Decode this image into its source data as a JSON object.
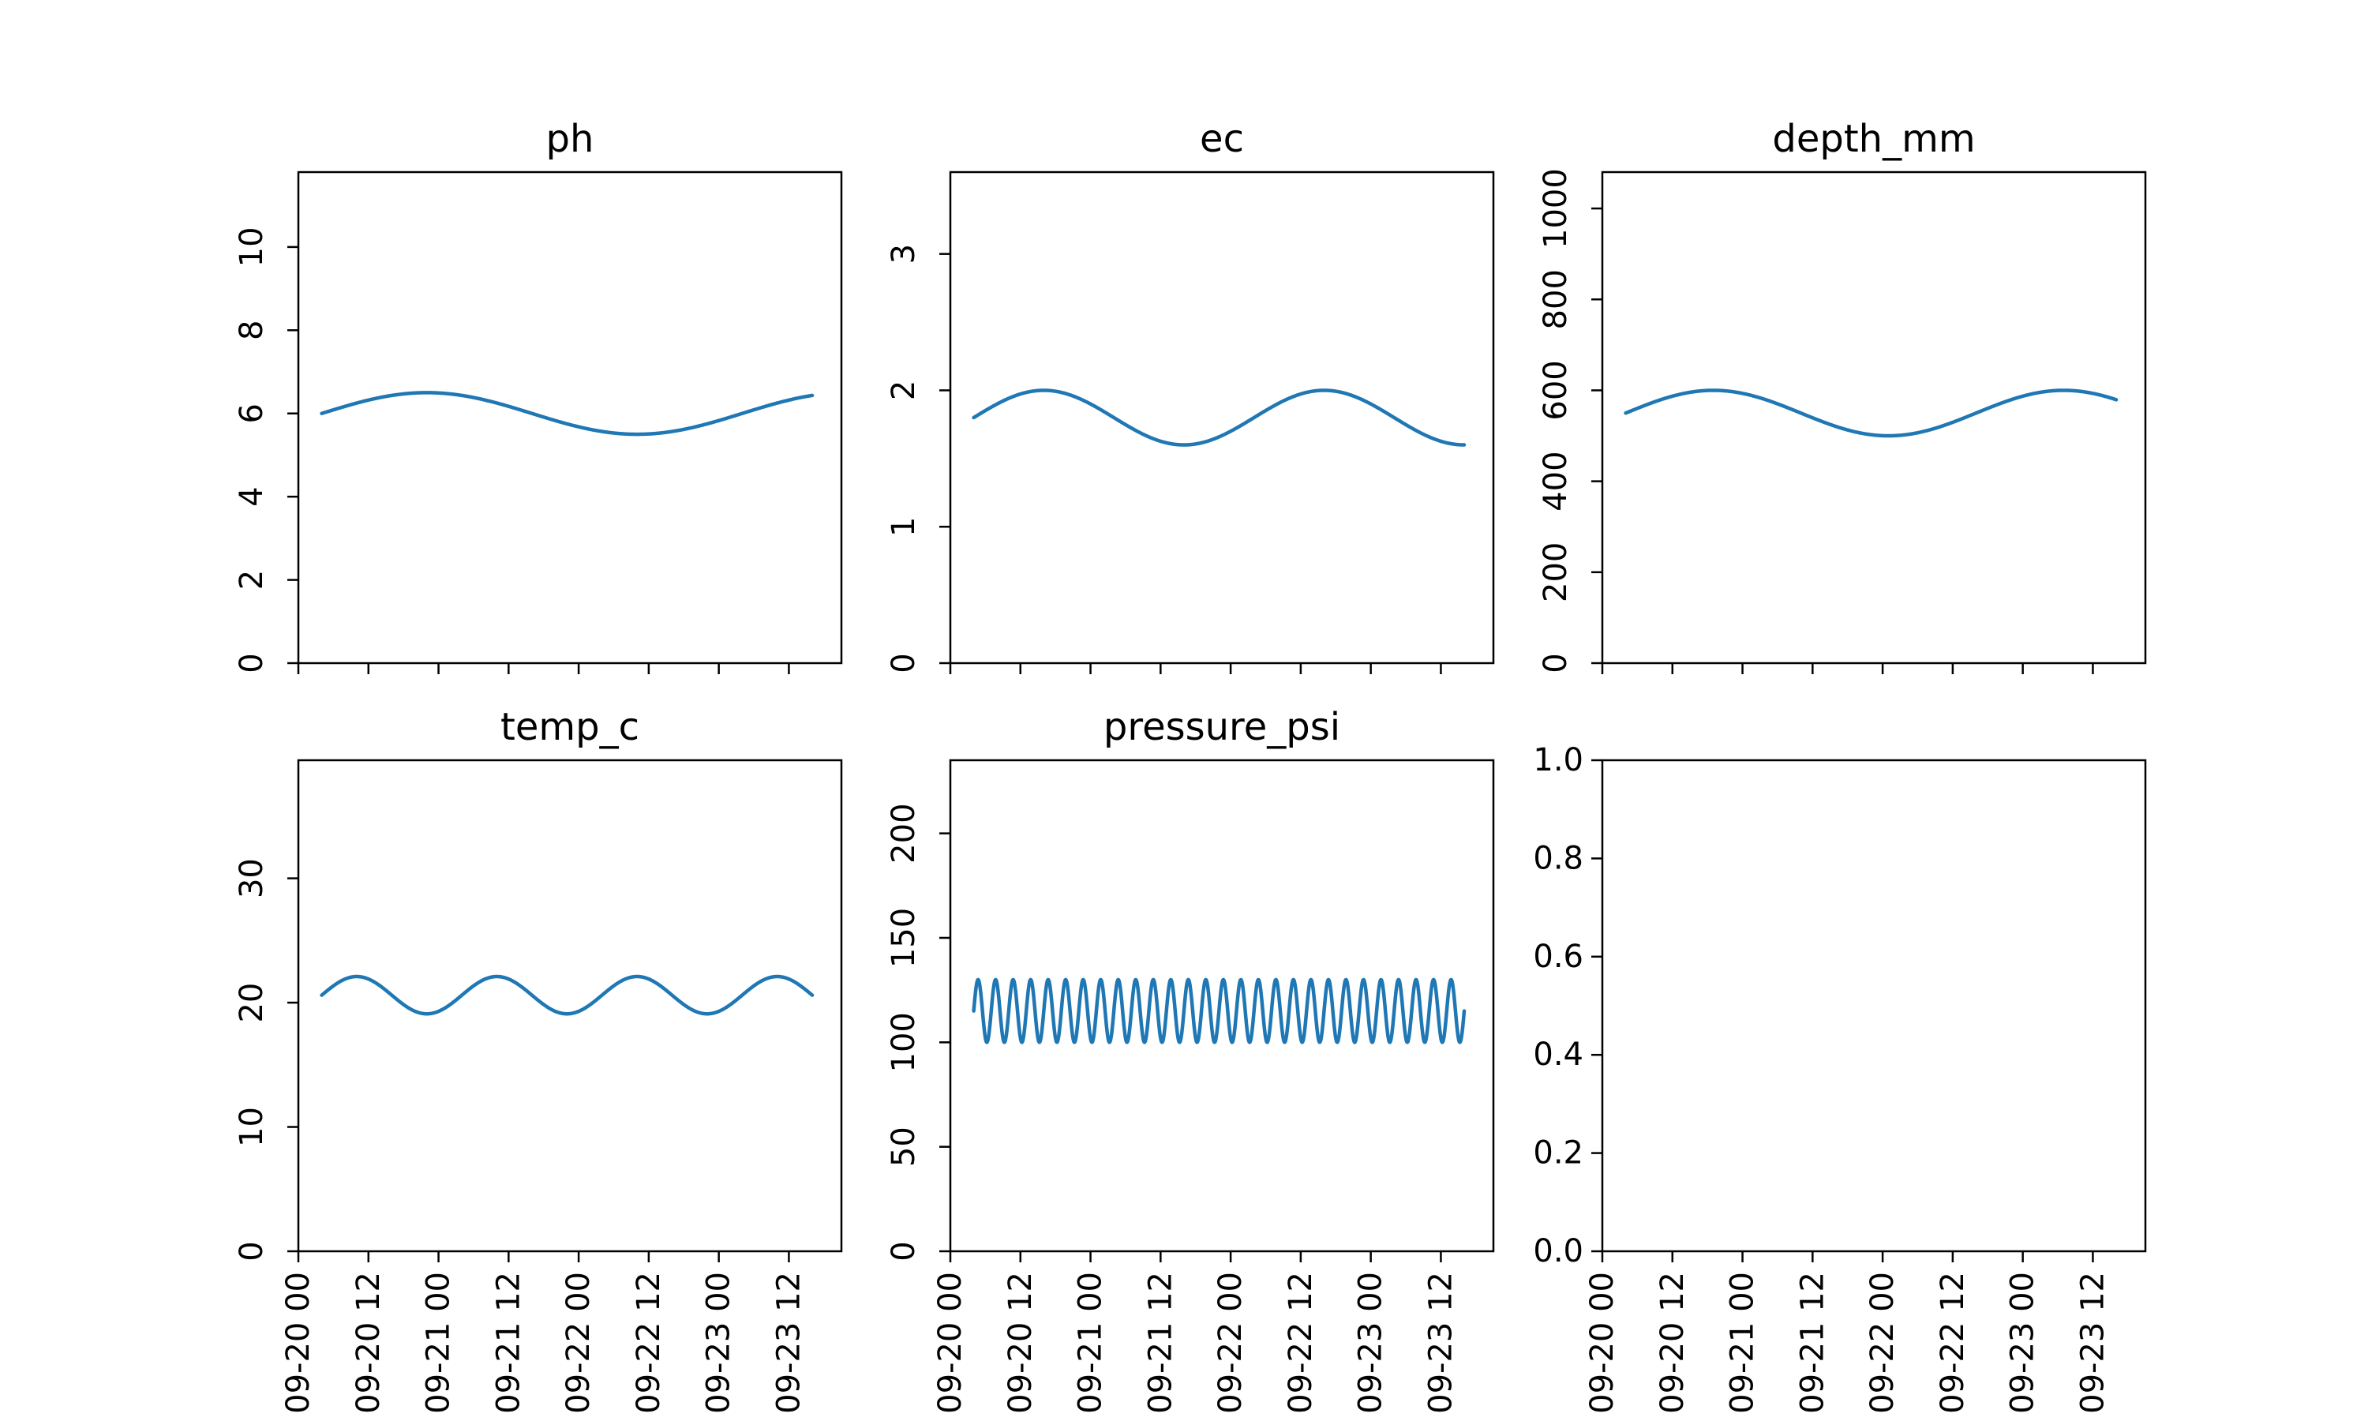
{
  "chart_data": [
    {
      "type": "line",
      "title": "ph",
      "ylim": [
        0,
        11.8
      ],
      "yticks": [
        0,
        2,
        4,
        6,
        8,
        10
      ],
      "x": [
        "2023-09-20 04:00",
        "2023-09-23 16:00"
      ],
      "series": [
        {
          "color": "#1f77b4",
          "mean": 6.0,
          "amplitude": 0.5,
          "period_hours": 72,
          "phase_deg": 0
        }
      ]
    },
    {
      "type": "line",
      "title": "ec",
      "ylim": [
        0,
        3.6
      ],
      "yticks": [
        0,
        1,
        2,
        3
      ],
      "x": [
        "2023-09-20 04:00",
        "2023-09-23 16:00"
      ],
      "series": [
        {
          "color": "#1f77b4",
          "mean": 1.8,
          "amplitude": 0.2,
          "period_hours": 48,
          "phase_deg": 0
        }
      ]
    },
    {
      "type": "line",
      "title": "depth_mm",
      "ylim": [
        0,
        1080
      ],
      "yticks": [
        0,
        200,
        400,
        600,
        800,
        1000
      ],
      "x": [
        "2023-09-20 04:00",
        "2023-09-23 16:00"
      ],
      "series": [
        {
          "color": "#1f77b4",
          "mean": 550,
          "amplitude": 50,
          "period_hours": 60,
          "phase_deg": 0
        }
      ]
    },
    {
      "type": "line",
      "title": "temp_c",
      "ylim": [
        0,
        39.5
      ],
      "yticks": [
        0,
        10,
        20,
        30
      ],
      "x": [
        "2023-09-20 04:00",
        "2023-09-23 16:00"
      ],
      "series": [
        {
          "color": "#1f77b4",
          "mean": 20.6,
          "amplitude": 1.5,
          "period_hours": 24,
          "phase_deg": 0
        }
      ]
    },
    {
      "type": "line",
      "title": "pressure_psi",
      "ylim": [
        0,
        235
      ],
      "yticks": [
        0,
        50,
        100,
        150,
        200
      ],
      "x": [
        "2023-09-20 04:00",
        "2023-09-23 16:00"
      ],
      "series": [
        {
          "color": "#1f77b4",
          "mean": 115,
          "amplitude": 15,
          "period_hours": 3,
          "phase_deg": 0
        }
      ]
    },
    {
      "type": "line",
      "title": "",
      "ylim": [
        0,
        1
      ],
      "yticks": [
        "0.0",
        "0.2",
        "0.4",
        "0.6",
        "0.8",
        "1.0"
      ],
      "series": []
    }
  ],
  "x_axis": {
    "range": [
      "2023-09-20 00:00",
      "2023-09-23 21:00"
    ],
    "ticks": [
      {
        "at": "2023-09-20 00:00",
        "label": "09-20 00"
      },
      {
        "at": "2023-09-20 12:00",
        "label": "09-20 12"
      },
      {
        "at": "2023-09-21 00:00",
        "label": "09-21 00"
      },
      {
        "at": "2023-09-21 12:00",
        "label": "09-21 12"
      },
      {
        "at": "2023-09-22 00:00",
        "label": "09-22 00"
      },
      {
        "at": "2023-09-22 12:00",
        "label": "09-22 12"
      },
      {
        "at": "2023-09-23 00:00",
        "label": "09-23 00"
      },
      {
        "at": "2023-09-23 12:00",
        "label": "09-23 12"
      }
    ]
  }
}
